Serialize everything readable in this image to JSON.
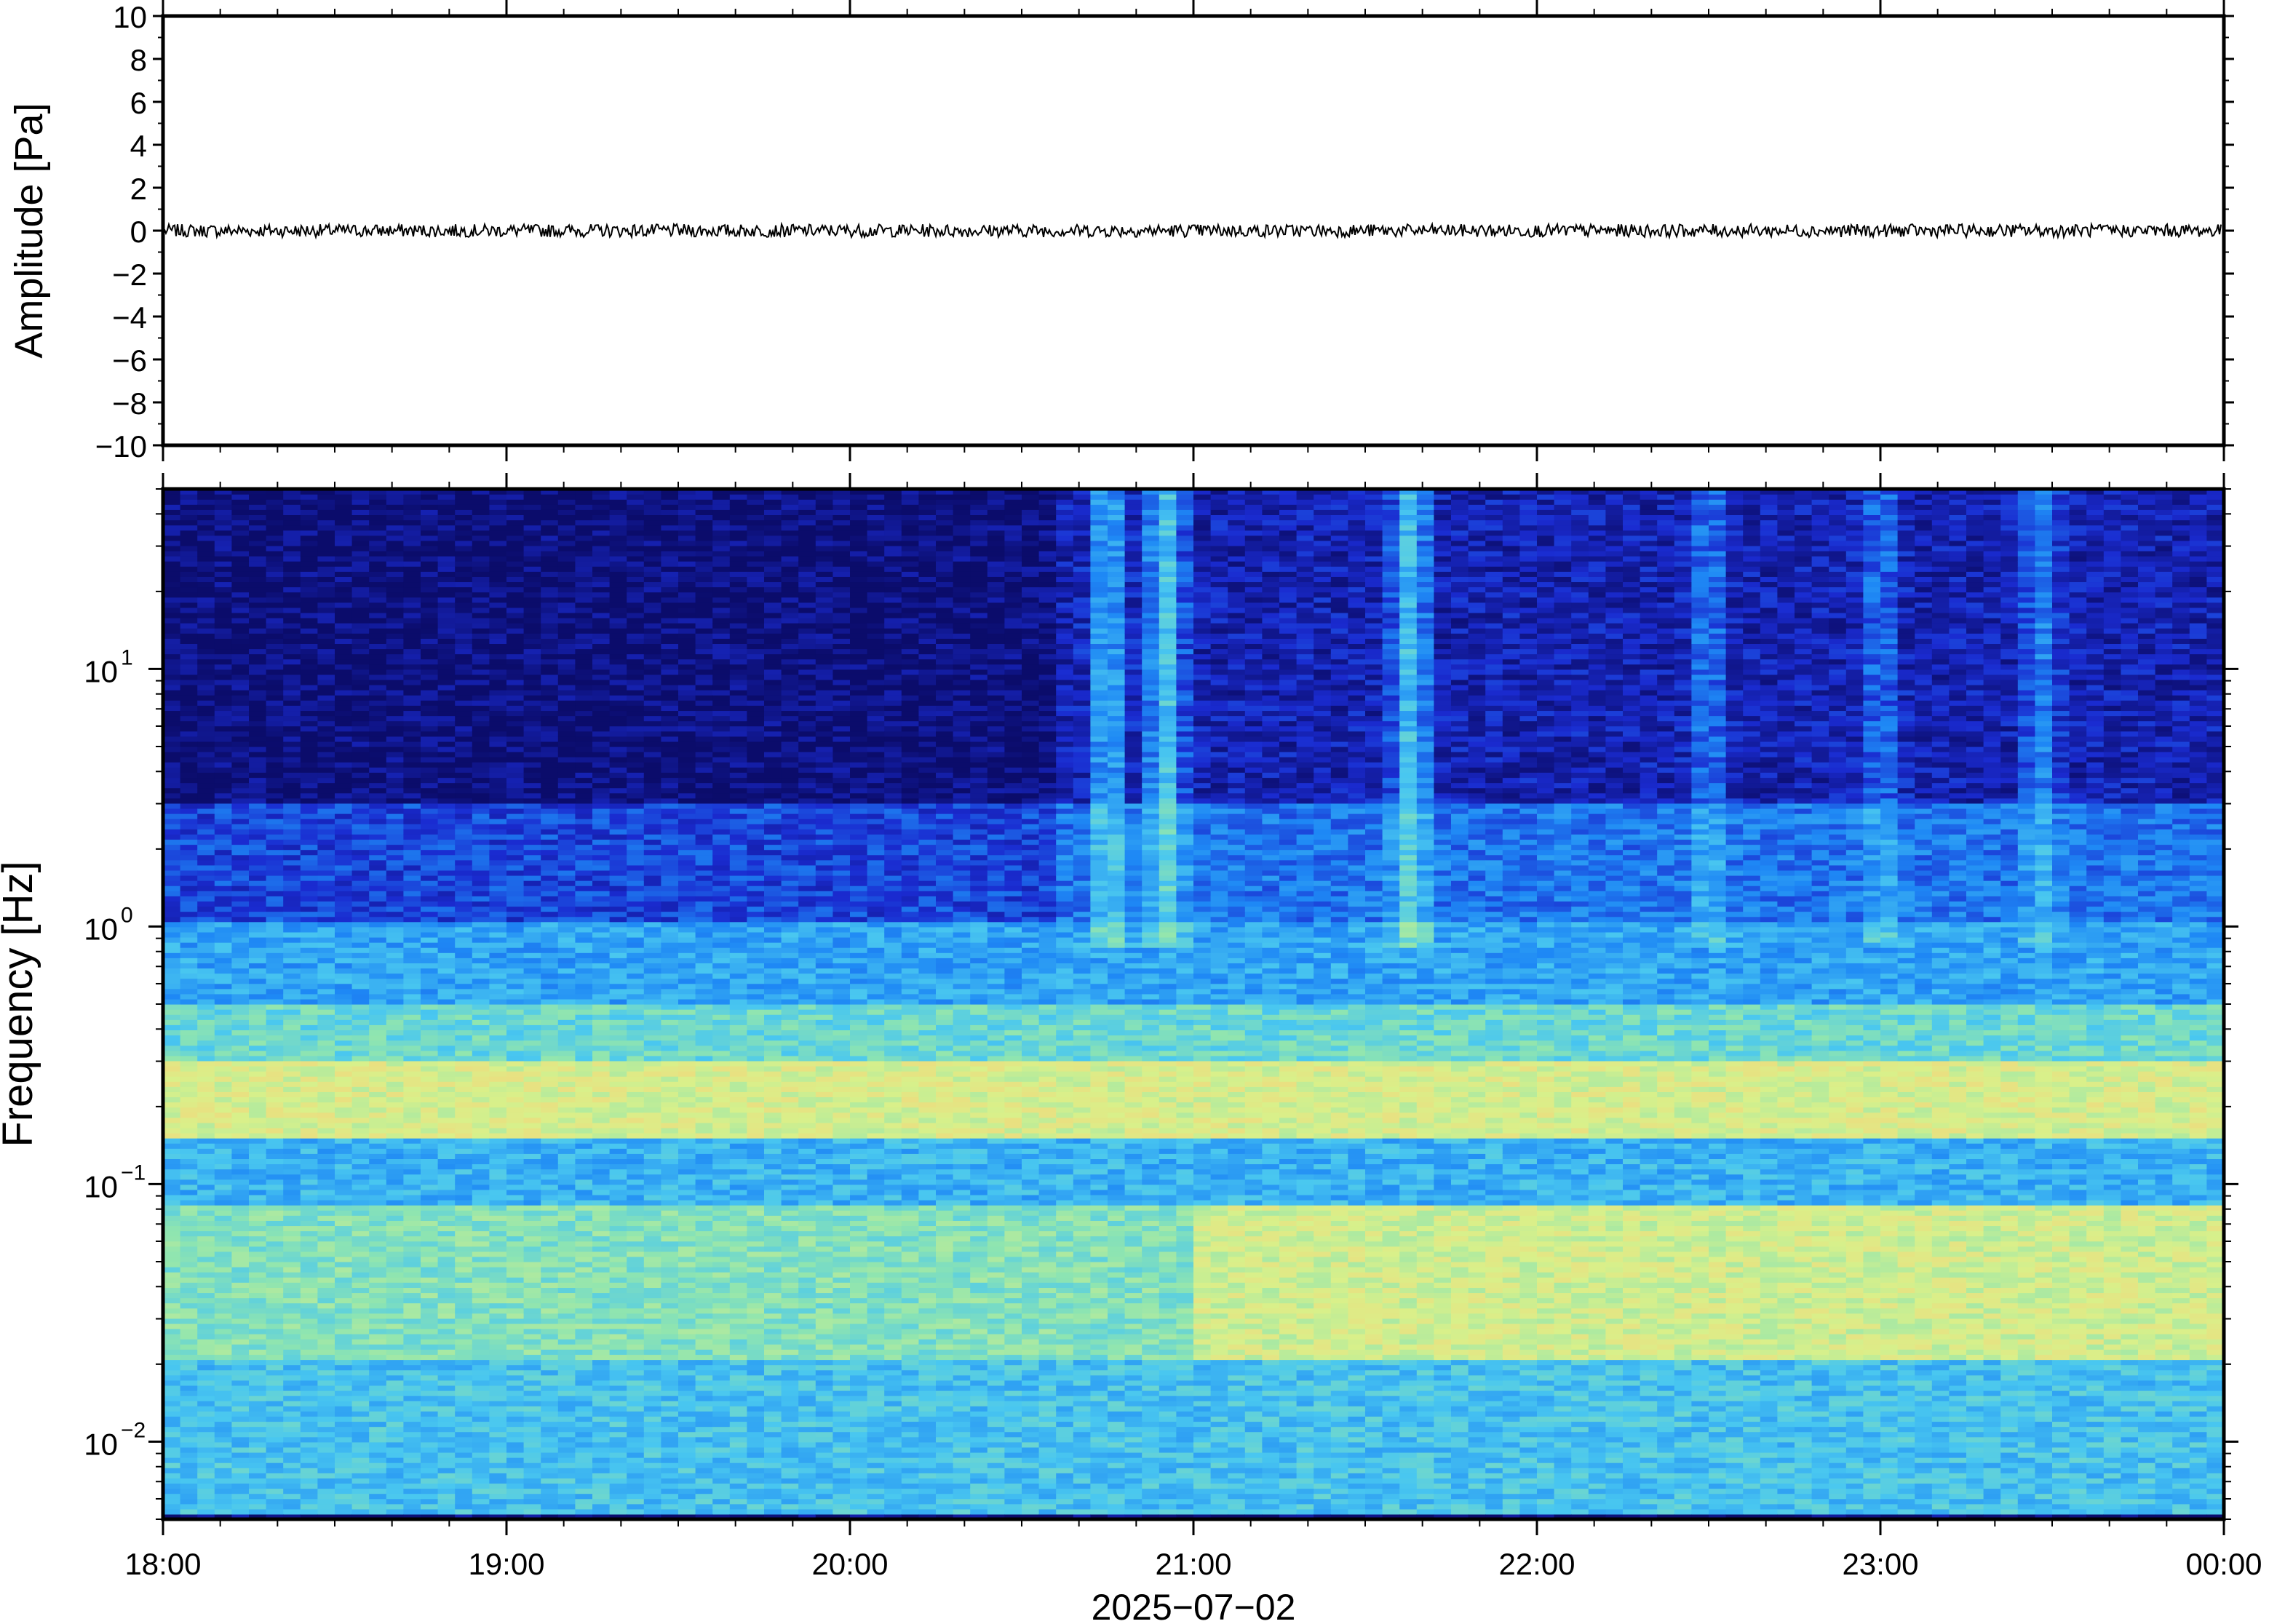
{
  "chart_data": [
    {
      "type": "line",
      "ylabel": "Amplitude [Pa]",
      "ylim": [
        -10,
        10
      ],
      "yticks": [
        "10",
        "8",
        "6",
        "4",
        "2",
        "0",
        "−2",
        "−4",
        "−6",
        "−8",
        "−10"
      ],
      "ytick_values": [
        10,
        8,
        6,
        4,
        2,
        0,
        -2,
        -4,
        -6,
        -8,
        -10
      ],
      "xlim": [
        "18:00",
        "00:00"
      ],
      "grid": false,
      "series": [
        {
          "values_description_free": true,
          "x_start": "18:00",
          "x_end": "00:00",
          "baseline": 0,
          "max_abs_amplitude": 0.3,
          "color": "#000000"
        }
      ]
    },
    {
      "type": "heatmap",
      "ylabel": "Frequency [Hz]",
      "yscale": "log",
      "ylim": [
        0.005,
        50
      ],
      "yticks": [
        {
          "base": "10",
          "exp": "1",
          "value": 10
        },
        {
          "base": "10",
          "exp": "0",
          "value": 1
        },
        {
          "base": "10",
          "exp": "−1",
          "value": 0.1
        },
        {
          "base": "10",
          "exp": "−2",
          "value": 0.01
        }
      ],
      "xticks": [
        "18:00",
        "19:00",
        "20:00",
        "21:00",
        "22:00",
        "23:00",
        "00:00"
      ],
      "xlabel": "2025−07−02",
      "colormap": "jet",
      "colors": [
        "#0b0c6b",
        "#1a2bd0",
        "#1e88f5",
        "#49c7f0",
        "#8fe5b0",
        "#d9f08a",
        "#f4d57a",
        "#f7a35a"
      ],
      "bands": [
        {
          "fmin": 3,
          "fmax": 50,
          "level": 0.02,
          "note_level_scale": "0-1 normalized power"
        },
        {
          "fmin": 1,
          "fmax": 3,
          "level": 0.18
        },
        {
          "fmin": 0.5,
          "fmax": 1,
          "level": 0.35
        },
        {
          "fmin": 0.3,
          "fmax": 0.5,
          "level": 0.5
        },
        {
          "fmin": 0.15,
          "fmax": 0.3,
          "level": 0.72
        },
        {
          "fmin": 0.08,
          "fmax": 0.15,
          "level": 0.38
        },
        {
          "fmin": 0.02,
          "fmax": 0.08,
          "level": 0.6
        },
        {
          "fmin": 0.005,
          "fmax": 0.02,
          "level": 0.42
        }
      ],
      "bursts": [
        {
          "time": "20:45",
          "level": 0.35
        },
        {
          "time": "20:55",
          "level": 0.4
        },
        {
          "time": "21:38",
          "level": 0.38
        },
        {
          "time": "22:30",
          "level": 0.22
        },
        {
          "time": "23:00",
          "level": 0.2
        },
        {
          "time": "23:28",
          "level": 0.22
        }
      ]
    }
  ]
}
